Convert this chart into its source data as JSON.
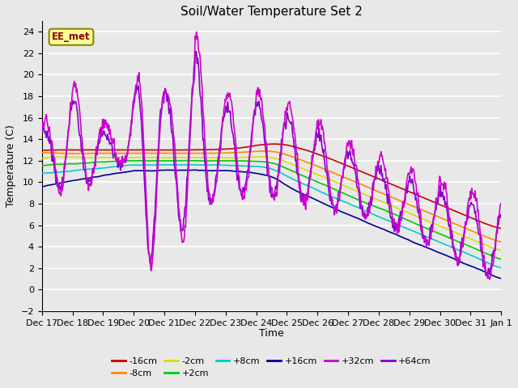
{
  "title": "Soil/Water Temperature Set 2",
  "xlabel": "Time",
  "ylabel": "Temperature (C)",
  "ylim": [
    -2,
    25
  ],
  "yticks": [
    -2,
    0,
    2,
    4,
    6,
    8,
    10,
    12,
    14,
    16,
    18,
    20,
    22,
    24
  ],
  "annotation": "EE_met",
  "series_colors": {
    "-16cm": "#cc0000",
    "-8cm": "#ff8800",
    "-2cm": "#dddd00",
    "+2cm": "#00cc00",
    "+8cm": "#00cccc",
    "+16cm": "#000099",
    "+32cm": "#cc00cc",
    "+64cm": "#8800cc"
  },
  "legend_order": [
    "-16cm",
    "-8cm",
    "-2cm",
    "+2cm",
    "+8cm",
    "+16cm",
    "+32cm",
    "+64cm"
  ],
  "background_color": "#e8e8e8",
  "plot_background": "#e8e8e8",
  "gridcolor": "#ffffff",
  "figsize": [
    6.4,
    4.8
  ],
  "dpi": 100
}
